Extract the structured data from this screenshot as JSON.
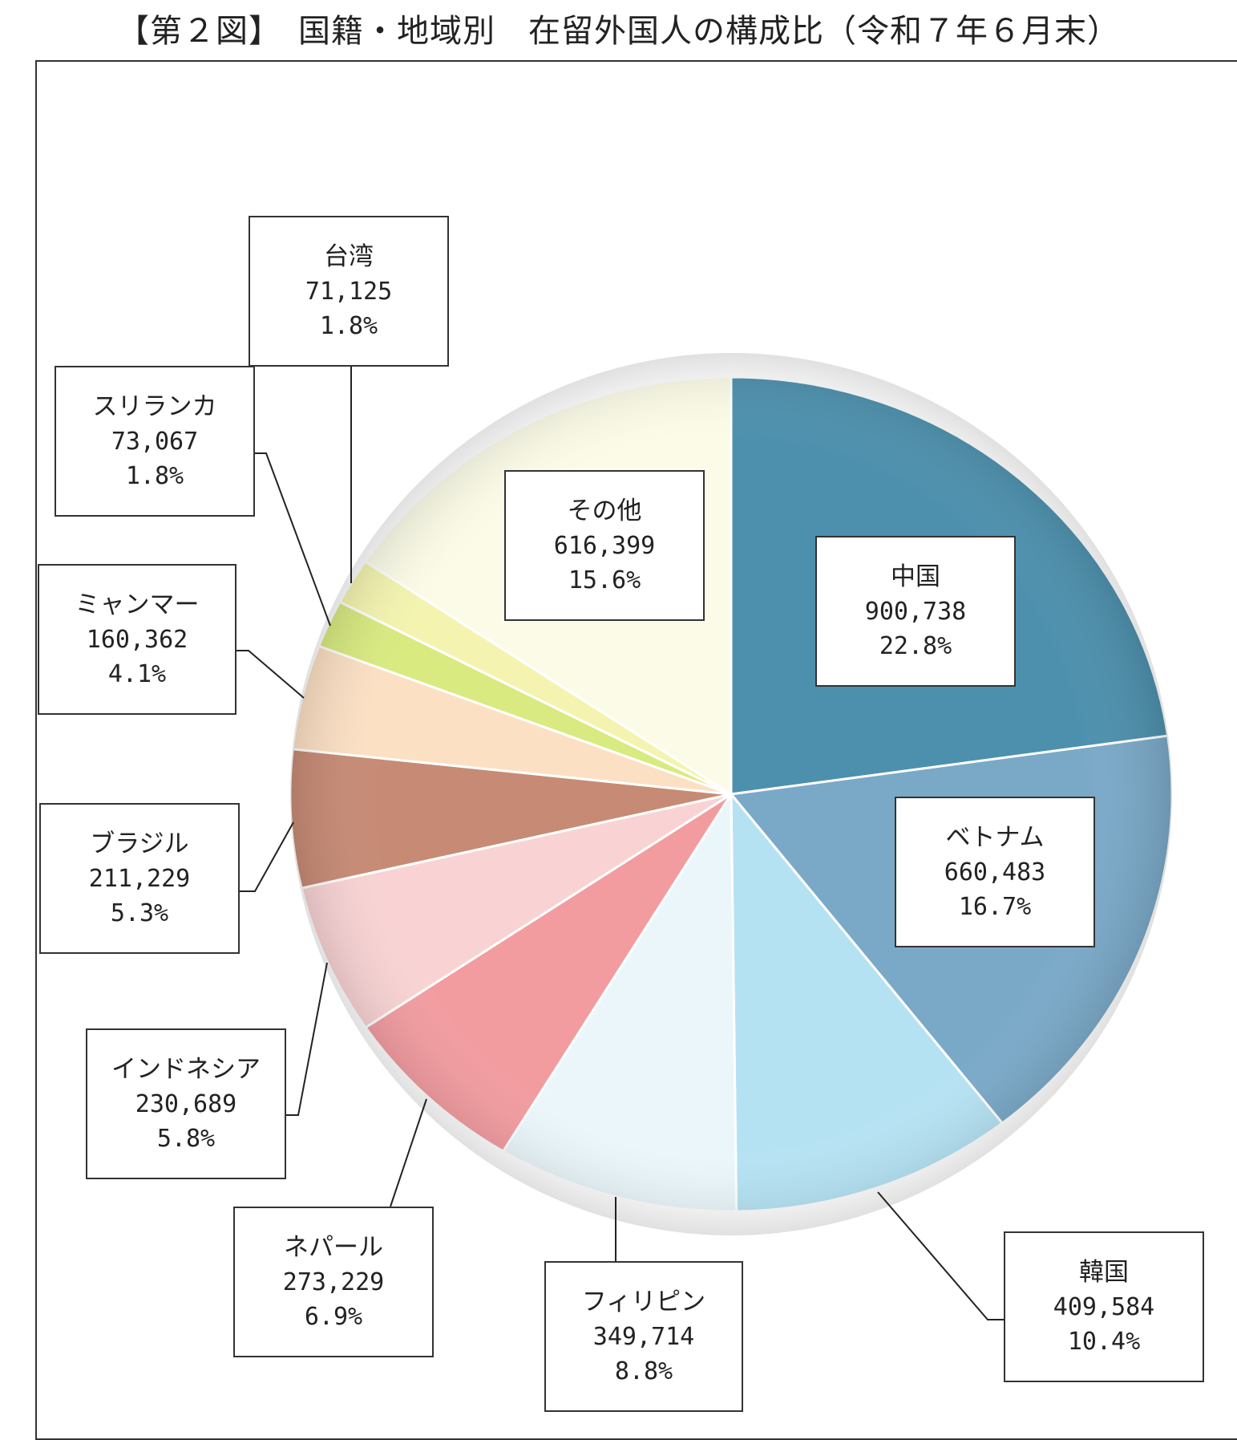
{
  "title": "【第２図】　国籍・地域別　在留外国人の構成比（令和７年６月末）",
  "chart_data": {
    "type": "pie",
    "title": "【第２図】　国籍・地域別　在留外国人の構成比（令和７年６月末）",
    "start": "12 o'clock, clockwise",
    "slices": [
      {
        "name": "中国",
        "value": 900738,
        "value_label": "900,738",
        "percent": 22.8,
        "percent_label": "22.8%",
        "color": "#4d90ad"
      },
      {
        "name": "ベトナム",
        "value": 660483,
        "value_label": "660,483",
        "percent": 16.7,
        "percent_label": "16.7%",
        "color": "#7aa9c8"
      },
      {
        "name": "韓国",
        "value": 409584,
        "value_label": "409,584",
        "percent": 10.4,
        "percent_label": "10.4%",
        "color": "#b5e2f3"
      },
      {
        "name": "フィリピン",
        "value": 349714,
        "value_label": "349,714",
        "percent": 8.8,
        "percent_label": "8.8%",
        "color": "#eaf6fa"
      },
      {
        "name": "ネパール",
        "value": 273229,
        "value_label": "273,229",
        "percent": 6.9,
        "percent_label": "6.9%",
        "color": "#f29ca0"
      },
      {
        "name": "インドネシア",
        "value": 230689,
        "value_label": "230,689",
        "percent": 5.8,
        "percent_label": "5.8%",
        "color": "#f9d3d4"
      },
      {
        "name": "ブラジル",
        "value": 211229,
        "value_label": "211,229",
        "percent": 5.3,
        "percent_label": "5.3%",
        "color": "#c78b75"
      },
      {
        "name": "ミャンマー",
        "value": 160362,
        "value_label": "160,362",
        "percent": 4.1,
        "percent_label": "4.1%",
        "color": "#fce0c4"
      },
      {
        "name": "スリランカ",
        "value": 73067,
        "value_label": "73,067",
        "percent": 1.8,
        "percent_label": "1.8%",
        "color": "#d9ea80"
      },
      {
        "name": "台湾",
        "value": 71125,
        "value_label": "71,125",
        "percent": 1.8,
        "percent_label": "1.8%",
        "color": "#f4f4b0"
      },
      {
        "name": "その他",
        "value": 616399,
        "value_label": "616,399",
        "percent": 15.6,
        "percent_label": "15.6%",
        "color": "#fbfbe7"
      }
    ]
  }
}
